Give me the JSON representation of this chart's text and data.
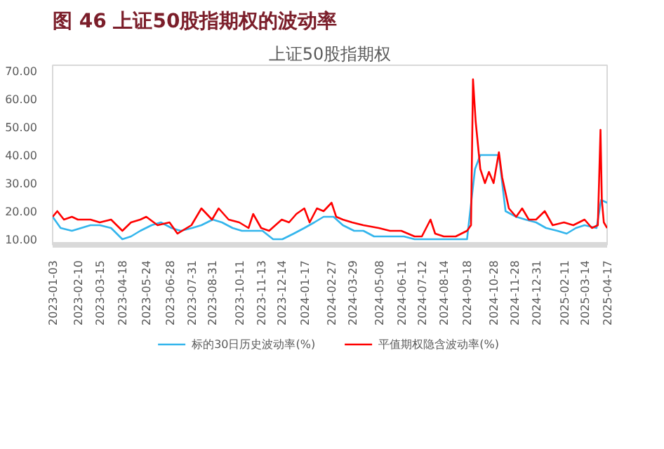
{
  "chart_data": {
    "type": "line",
    "title": "图 46 上证50股指期权的波动率",
    "subtitle": "上证50股指期权",
    "ylim": [
      8,
      72
    ],
    "yticks": [
      {
        "value": 10,
        "label": "10.00"
      },
      {
        "value": 20,
        "label": "20.00"
      },
      {
        "value": 30,
        "label": "30.00"
      },
      {
        "value": 40,
        "label": "40.00"
      },
      {
        "value": 50,
        "label": "50.00"
      },
      {
        "value": 60,
        "label": "60.00"
      },
      {
        "value": 70,
        "label": "70.00"
      }
    ],
    "xlim": [
      "2023-01-03",
      "2025-04-17"
    ],
    "xticks": [
      "2023-01-03",
      "2023-02-10",
      "2023-03-15",
      "2023-04-18",
      "2023-05-24",
      "2023-06-28",
      "2023-07-31",
      "2023-08-31",
      "2023-10-11",
      "2023-11-13",
      "2023-12-14",
      "2024-01-17",
      "2024-02-27",
      "2024-03-29",
      "2024-05-08",
      "2024-06-11",
      "2024-07-12",
      "2024-08-14",
      "2024-09-18",
      "2024-10-28",
      "2024-11-28",
      "2024-12-31",
      "2025-02-11",
      "2025-03-14",
      "2025-04-17"
    ],
    "grid": false,
    "legend": "bottom",
    "series": [
      {
        "name": "标的30日历史波动率(%)",
        "color": "#33b5ec",
        "x": [
          "2023-01-03",
          "2023-01-15",
          "2023-02-01",
          "2023-02-15",
          "2023-03-01",
          "2023-03-15",
          "2023-04-01",
          "2023-04-18",
          "2023-05-01",
          "2023-05-15",
          "2023-06-01",
          "2023-06-15",
          "2023-07-01",
          "2023-07-15",
          "2023-08-01",
          "2023-08-15",
          "2023-09-01",
          "2023-09-15",
          "2023-10-01",
          "2023-10-15",
          "2023-11-01",
          "2023-11-15",
          "2023-12-01",
          "2023-12-15",
          "2024-01-01",
          "2024-01-17",
          "2024-02-01",
          "2024-02-15",
          "2024-03-01",
          "2024-03-15",
          "2024-04-01",
          "2024-04-15",
          "2024-05-01",
          "2024-05-15",
          "2024-06-01",
          "2024-06-15",
          "2024-07-01",
          "2024-07-12",
          "2024-08-01",
          "2024-08-14",
          "2024-09-01",
          "2024-09-18",
          "2024-09-30",
          "2024-10-08",
          "2024-10-28",
          "2024-11-05",
          "2024-11-15",
          "2024-12-01",
          "2024-12-15",
          "2024-12-31",
          "2025-01-15",
          "2025-02-01",
          "2025-02-15",
          "2025-03-01",
          "2025-03-14",
          "2025-04-01",
          "2025-04-08",
          "2025-04-17"
        ],
        "values": [
          18,
          14,
          13,
          14,
          15,
          15,
          14,
          10,
          11,
          13,
          15,
          16,
          14,
          13,
          14,
          15,
          17,
          16,
          14,
          13,
          13,
          13,
          10,
          10,
          12,
          14,
          16,
          18,
          18,
          15,
          13,
          13,
          11,
          11,
          11,
          11,
          10,
          10,
          10,
          10,
          10,
          10,
          35,
          40,
          40,
          40,
          20,
          18,
          17,
          16,
          14,
          13,
          12,
          14,
          15,
          14,
          24,
          23
        ]
      },
      {
        "name": "平值期权隐含波动率(%)",
        "color": "#ff0000",
        "x": [
          "2023-01-03",
          "2023-01-10",
          "2023-01-20",
          "2023-02-01",
          "2023-02-10",
          "2023-02-20",
          "2023-03-01",
          "2023-03-15",
          "2023-04-01",
          "2023-04-18",
          "2023-05-01",
          "2023-05-15",
          "2023-05-24",
          "2023-06-10",
          "2023-06-28",
          "2023-07-10",
          "2023-07-31",
          "2023-08-15",
          "2023-08-31",
          "2023-09-10",
          "2023-09-25",
          "2023-10-11",
          "2023-10-25",
          "2023-11-01",
          "2023-11-13",
          "2023-11-25",
          "2023-12-14",
          "2023-12-25",
          "2024-01-05",
          "2024-01-17",
          "2024-01-25",
          "2024-02-05",
          "2024-02-15",
          "2024-02-27",
          "2024-03-05",
          "2024-03-15",
          "2024-03-29",
          "2024-04-15",
          "2024-05-08",
          "2024-05-25",
          "2024-06-11",
          "2024-07-01",
          "2024-07-12",
          "2024-07-25",
          "2024-08-01",
          "2024-08-14",
          "2024-09-01",
          "2024-09-18",
          "2024-09-24",
          "2024-09-27",
          "2024-10-01",
          "2024-10-08",
          "2024-10-15",
          "2024-10-21",
          "2024-10-28",
          "2024-11-05",
          "2024-11-10",
          "2024-11-20",
          "2024-12-01",
          "2024-12-10",
          "2024-12-20",
          "2024-12-31",
          "2025-01-13",
          "2025-01-25",
          "2025-02-11",
          "2025-02-25",
          "2025-03-14",
          "2025-03-25",
          "2025-04-03",
          "2025-04-07",
          "2025-04-09",
          "2025-04-12",
          "2025-04-17"
        ],
        "values": [
          18,
          20,
          17,
          18,
          17,
          17,
          17,
          16,
          17,
          13,
          16,
          17,
          18,
          15,
          16,
          12,
          15,
          21,
          17,
          21,
          17,
          16,
          14,
          19,
          14,
          13,
          17,
          16,
          19,
          21,
          16,
          21,
          20,
          23,
          18,
          17,
          16,
          15,
          14,
          13,
          13,
          11,
          11,
          17,
          12,
          11,
          11,
          13,
          15,
          67,
          52,
          35,
          30,
          34,
          30,
          41,
          32,
          21,
          18,
          21,
          17,
          17,
          20,
          15,
          16,
          15,
          17,
          14,
          15,
          49,
          24,
          16,
          14
        ]
      }
    ]
  }
}
